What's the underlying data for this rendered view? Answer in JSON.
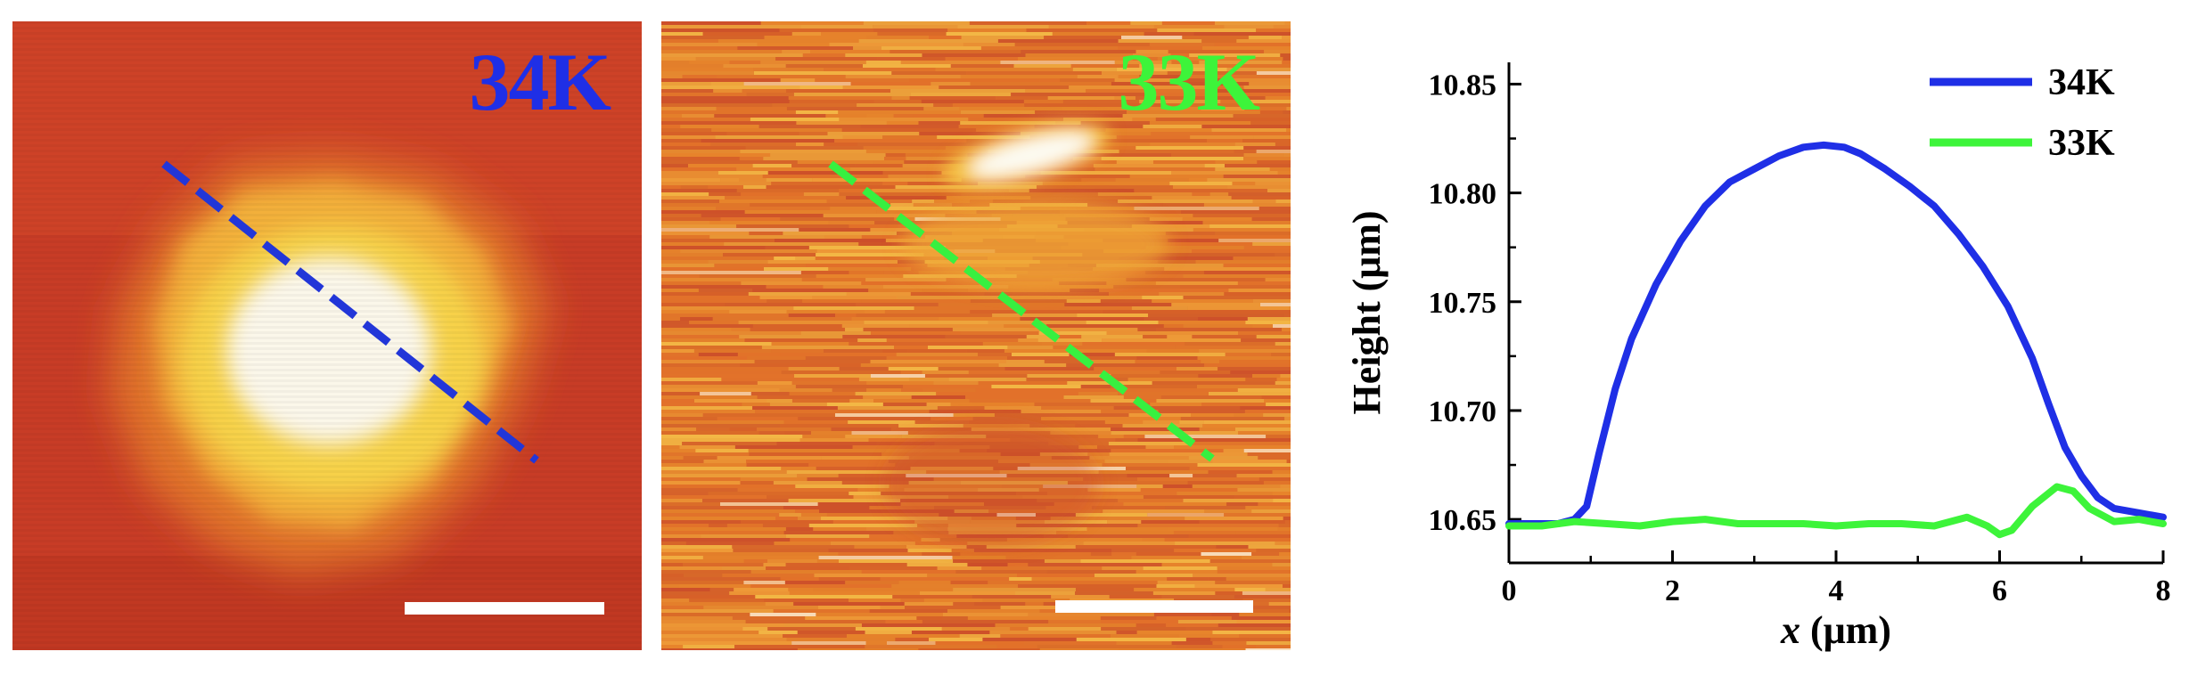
{
  "panels": [
    {
      "label": "34K",
      "label_color": "#1f2fe6",
      "line_color": "#2236d8",
      "image": "afm-height-map-34K"
    },
    {
      "label": "33K",
      "label_color": "#3df43a",
      "line_color": "#37f040",
      "image": "afm-height-map-33K"
    }
  ],
  "chart_data": {
    "type": "line",
    "xlabel_italic": "x",
    "xlabel_unit": " (μm)",
    "ylabel": "Height (μm)",
    "xlim": [
      0,
      8
    ],
    "ylim": [
      10.63,
      10.86
    ],
    "xticks": [
      0,
      2,
      4,
      6,
      8
    ],
    "yticks": [
      10.65,
      10.7,
      10.75,
      10.8,
      10.85
    ],
    "ytick_labels": [
      "10.65",
      "10.70",
      "10.75",
      "10.80",
      "10.85"
    ],
    "xtick_labels": [
      "0",
      "2",
      "4",
      "6",
      "8"
    ],
    "grid": false,
    "legend_position": "top-right",
    "series": [
      {
        "name": "34K",
        "color": "#1f2fe6",
        "x": [
          0,
          0.3,
          0.6,
          0.8,
          0.95,
          1.1,
          1.3,
          1.5,
          1.8,
          2.1,
          2.4,
          2.7,
          3.0,
          3.3,
          3.6,
          3.85,
          4.1,
          4.3,
          4.6,
          4.9,
          5.2,
          5.5,
          5.8,
          6.1,
          6.4,
          6.6,
          6.8,
          7.0,
          7.2,
          7.4,
          7.7,
          8.0
        ],
        "values": [
          10.648,
          10.648,
          10.648,
          10.65,
          10.656,
          10.68,
          10.71,
          10.733,
          10.758,
          10.778,
          10.794,
          10.805,
          10.811,
          10.817,
          10.821,
          10.822,
          10.821,
          10.818,
          10.811,
          10.803,
          10.794,
          10.781,
          10.766,
          10.748,
          10.724,
          10.703,
          10.683,
          10.67,
          10.66,
          10.655,
          10.653,
          10.651
        ]
      },
      {
        "name": "33K",
        "color": "#3df43a",
        "x": [
          0,
          0.4,
          0.8,
          1.2,
          1.6,
          2.0,
          2.4,
          2.8,
          3.2,
          3.6,
          4.0,
          4.4,
          4.8,
          5.2,
          5.6,
          5.85,
          6.0,
          6.15,
          6.4,
          6.7,
          6.9,
          7.1,
          7.4,
          7.7,
          8.0
        ],
        "values": [
          10.647,
          10.647,
          10.649,
          10.648,
          10.647,
          10.649,
          10.65,
          10.648,
          10.648,
          10.648,
          10.647,
          10.648,
          10.648,
          10.647,
          10.651,
          10.647,
          10.643,
          10.645,
          10.656,
          10.665,
          10.663,
          10.655,
          10.649,
          10.65,
          10.648
        ]
      }
    ]
  },
  "colors": {
    "afm_low": "#c63a24",
    "afm_mid": "#e07a28",
    "afm_high": "#f6c23c",
    "afm_peak": "#fbfbf6",
    "axis": "#000000",
    "scalebar": "#ffffff"
  }
}
